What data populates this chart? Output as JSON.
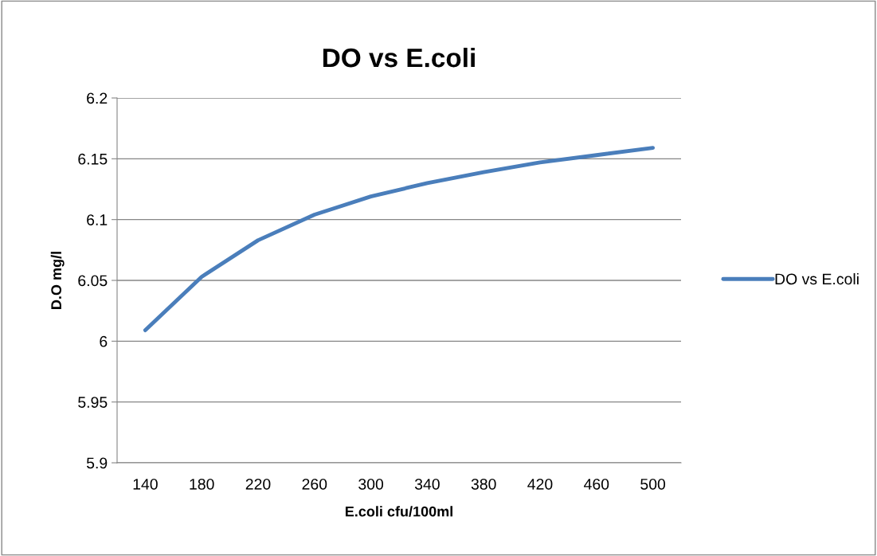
{
  "chart_data": {
    "type": "line",
    "title": "DO vs E.coli",
    "xlabel": "E.coli cfu/100ml",
    "ylabel": "D.O mg/l",
    "categories": [
      "140",
      "180",
      "220",
      "260",
      "300",
      "340",
      "380",
      "420",
      "460",
      "500"
    ],
    "series": [
      {
        "name": "DO vs E.coli",
        "color": "#4a7ebb",
        "values": [
          6.009,
          6.053,
          6.083,
          6.104,
          6.119,
          6.13,
          6.139,
          6.147,
          6.153,
          6.159
        ]
      }
    ],
    "ylim": [
      5.9,
      6.2
    ],
    "yticks": [
      5.9,
      5.95,
      6,
      6.05,
      6.1,
      6.15,
      6.2
    ],
    "grid": "y",
    "legend": "right",
    "marker": "none",
    "line_style": "solid"
  }
}
